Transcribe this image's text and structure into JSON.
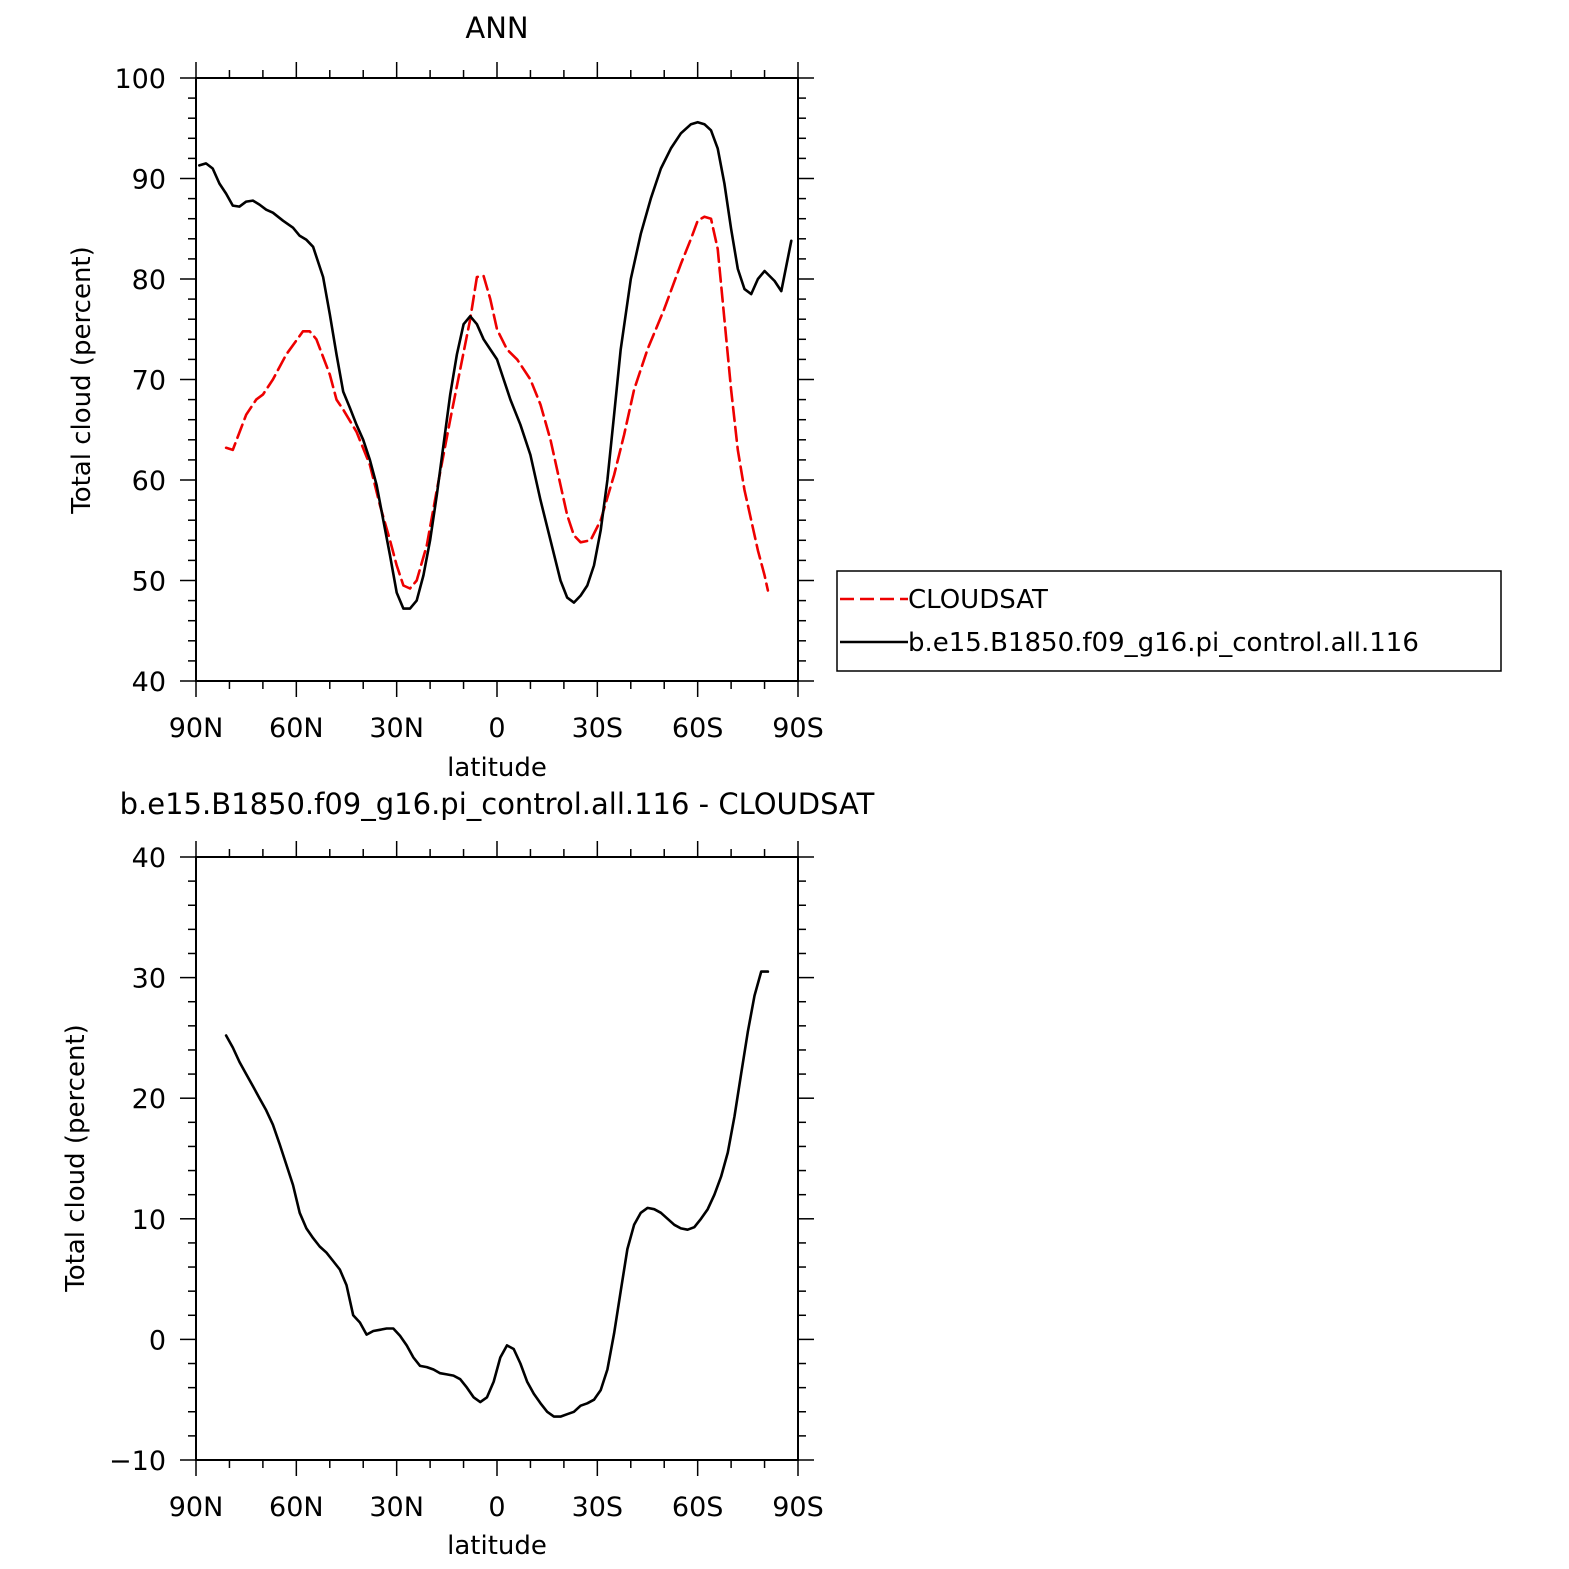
{
  "chart_data": [
    {
      "type": "line",
      "title": "ANN",
      "xlabel": "latitude",
      "ylabel": "Total cloud (percent)",
      "xlim": [
        90,
        -90
      ],
      "ylim": [
        40,
        100
      ],
      "x_ticks": [
        {
          "value": 90,
          "label": "90N"
        },
        {
          "value": 60,
          "label": "60N"
        },
        {
          "value": 30,
          "label": "30N"
        },
        {
          "value": 0,
          "label": "0"
        },
        {
          "value": -30,
          "label": "30S"
        },
        {
          "value": -60,
          "label": "60S"
        },
        {
          "value": -90,
          "label": "90S"
        }
      ],
      "y_ticks": [
        40,
        50,
        60,
        70,
        80,
        90,
        100
      ],
      "legend": {
        "placement": "right",
        "entries": [
          {
            "label": "CLOUDSAT",
            "color": "#ee0000",
            "style": "dashed"
          },
          {
            "label": "b.e15.B1850.f09_g16.pi_control.all.116",
            "color": "#000000",
            "style": "solid"
          }
        ]
      },
      "series": [
        {
          "name": "CLOUDSAT",
          "color": "#ee0000",
          "style": "dashed",
          "x": [
            81,
            79,
            75,
            72,
            70,
            67,
            63,
            58,
            56,
            54,
            50,
            48,
            46,
            42,
            38,
            35,
            32,
            30,
            28,
            26,
            24,
            21,
            18,
            14,
            11,
            8,
            6,
            4,
            2,
            0,
            -3,
            -6,
            -10,
            -13,
            -16,
            -19,
            -21,
            -23,
            -25,
            -28,
            -31,
            -35,
            -38,
            -41,
            -45,
            -50,
            -55,
            -58,
            -60,
            -62,
            -64,
            -66,
            -68,
            -70,
            -72,
            -74,
            -76,
            -78,
            -80,
            -81
          ],
          "y": [
            63.2,
            63.0,
            66.5,
            68.0,
            68.5,
            70.0,
            72.5,
            74.8,
            74.8,
            74.0,
            70.5,
            68.0,
            67.0,
            64.8,
            61.5,
            57.5,
            54.0,
            51.5,
            49.5,
            49.2,
            50.0,
            53.5,
            59.0,
            66.0,
            71.0,
            76.0,
            80.2,
            80.3,
            78.0,
            75.0,
            73.0,
            72.0,
            70.0,
            67.5,
            64.0,
            59.5,
            56.5,
            54.5,
            53.8,
            54.0,
            56.0,
            60.5,
            64.5,
            69.0,
            73.0,
            77.0,
            81.5,
            84.0,
            85.8,
            86.2,
            86.0,
            83.0,
            76.0,
            69.0,
            63.0,
            59.0,
            56.0,
            53.0,
            50.5,
            49.0
          ]
        },
        {
          "name": "b.e15.B1850.f09_g16.pi_control.all.116",
          "color": "#000000",
          "style": "solid",
          "x": [
            89,
            87,
            85,
            83,
            81,
            79,
            77,
            75,
            73,
            71,
            69,
            67,
            64,
            61,
            59,
            57,
            55,
            52,
            50,
            48,
            46,
            44,
            42,
            40,
            38,
            36,
            34,
            32,
            30,
            28,
            26,
            24,
            22,
            20,
            18,
            16,
            14,
            12,
            10,
            8,
            6,
            4,
            2,
            0,
            -2,
            -4,
            -7,
            -10,
            -13,
            -16,
            -19,
            -21,
            -23,
            -25,
            -27,
            -29,
            -31,
            -33,
            -35,
            -37,
            -40,
            -43,
            -46,
            -49,
            -52,
            -55,
            -58,
            -60,
            -62,
            -64,
            -66,
            -68,
            -70,
            -72,
            -74,
            -76,
            -78,
            -80,
            -83,
            -85,
            -88
          ],
          "y": [
            91.3,
            91.5,
            91.0,
            89.5,
            88.5,
            87.3,
            87.2,
            87.7,
            87.8,
            87.4,
            86.9,
            86.6,
            85.8,
            85.1,
            84.3,
            83.9,
            83.2,
            80.2,
            76.5,
            72.5,
            68.8,
            67.2,
            65.5,
            64.0,
            62.0,
            59.5,
            56.0,
            52.5,
            48.8,
            47.2,
            47.2,
            48.0,
            50.5,
            54.0,
            58.5,
            63.5,
            68.5,
            72.5,
            75.5,
            76.3,
            75.5,
            74.0,
            73.0,
            72.0,
            70.0,
            68.0,
            65.5,
            62.5,
            58.0,
            54.0,
            50.0,
            48.3,
            47.8,
            48.5,
            49.5,
            51.5,
            55.0,
            60.0,
            66.5,
            73.0,
            80.0,
            84.5,
            88.0,
            91.0,
            93.0,
            94.5,
            95.4,
            95.6,
            95.4,
            94.8,
            93.0,
            89.5,
            85.0,
            81.0,
            79.0,
            78.5,
            80.0,
            80.8,
            79.8,
            78.8,
            83.8
          ]
        }
      ]
    },
    {
      "type": "line",
      "title": "b.e15.B1850.f09_g16.pi_control.all.116 - CLOUDSAT",
      "xlabel": "latitude",
      "ylabel": "Total cloud (percent)",
      "xlim": [
        90,
        -90
      ],
      "ylim": [
        -10,
        40
      ],
      "x_ticks": [
        {
          "value": 90,
          "label": "90N"
        },
        {
          "value": 60,
          "label": "60N"
        },
        {
          "value": 30,
          "label": "30N"
        },
        {
          "value": 0,
          "label": "0"
        },
        {
          "value": -30,
          "label": "30S"
        },
        {
          "value": -60,
          "label": "60S"
        },
        {
          "value": -90,
          "label": "90S"
        }
      ],
      "y_ticks": [
        -10,
        0,
        10,
        20,
        30,
        40
      ],
      "y_tick_labels": [
        "−10",
        "0",
        "10",
        "20",
        "30",
        "40"
      ],
      "series": [
        {
          "color": "#000000",
          "style": "solid",
          "x": [
            81,
            79,
            77,
            75,
            73,
            71,
            69,
            67,
            65,
            63,
            61,
            59,
            57,
            55,
            53,
            51,
            49,
            47,
            45,
            43,
            41,
            39,
            37,
            35,
            33,
            31,
            29,
            27,
            25,
            23,
            21,
            19,
            17,
            15,
            13,
            11,
            9,
            7,
            5,
            3,
            1,
            -1,
            -3,
            -5,
            -7,
            -9,
            -11,
            -13,
            -15,
            -17,
            -19,
            -21,
            -23,
            -25,
            -27,
            -29,
            -31,
            -33,
            -35,
            -37,
            -39,
            -41,
            -43,
            -45,
            -47,
            -49,
            -51,
            -53,
            -55,
            -57,
            -59,
            -61,
            -63,
            -65,
            -67,
            -69,
            -71,
            -73,
            -75,
            -77,
            -79,
            -81
          ],
          "y": [
            25.2,
            24.2,
            23.0,
            22.0,
            21.0,
            20.0,
            19.0,
            17.8,
            16.2,
            14.5,
            12.8,
            10.5,
            9.2,
            8.4,
            7.7,
            7.2,
            6.5,
            5.8,
            4.5,
            2.0,
            1.4,
            0.4,
            0.7,
            0.8,
            0.9,
            0.9,
            0.3,
            -0.5,
            -1.5,
            -2.2,
            -2.3,
            -2.5,
            -2.8,
            -2.9,
            -3.0,
            -3.3,
            -4.0,
            -4.8,
            -5.2,
            -4.8,
            -3.5,
            -1.5,
            -0.5,
            -0.8,
            -2.0,
            -3.5,
            -4.5,
            -5.3,
            -6.0,
            -6.4,
            -6.4,
            -6.2,
            -6.0,
            -5.5,
            -5.3,
            -5.0,
            -4.2,
            -2.5,
            0.5,
            4.0,
            7.5,
            9.5,
            10.5,
            10.9,
            10.8,
            10.5,
            10.0,
            9.5,
            9.2,
            9.1,
            9.3,
            10.0,
            10.8,
            12.0,
            13.5,
            15.5,
            18.5,
            22.0,
            25.5,
            28.5,
            30.5,
            30.5
          ]
        }
      ]
    }
  ]
}
